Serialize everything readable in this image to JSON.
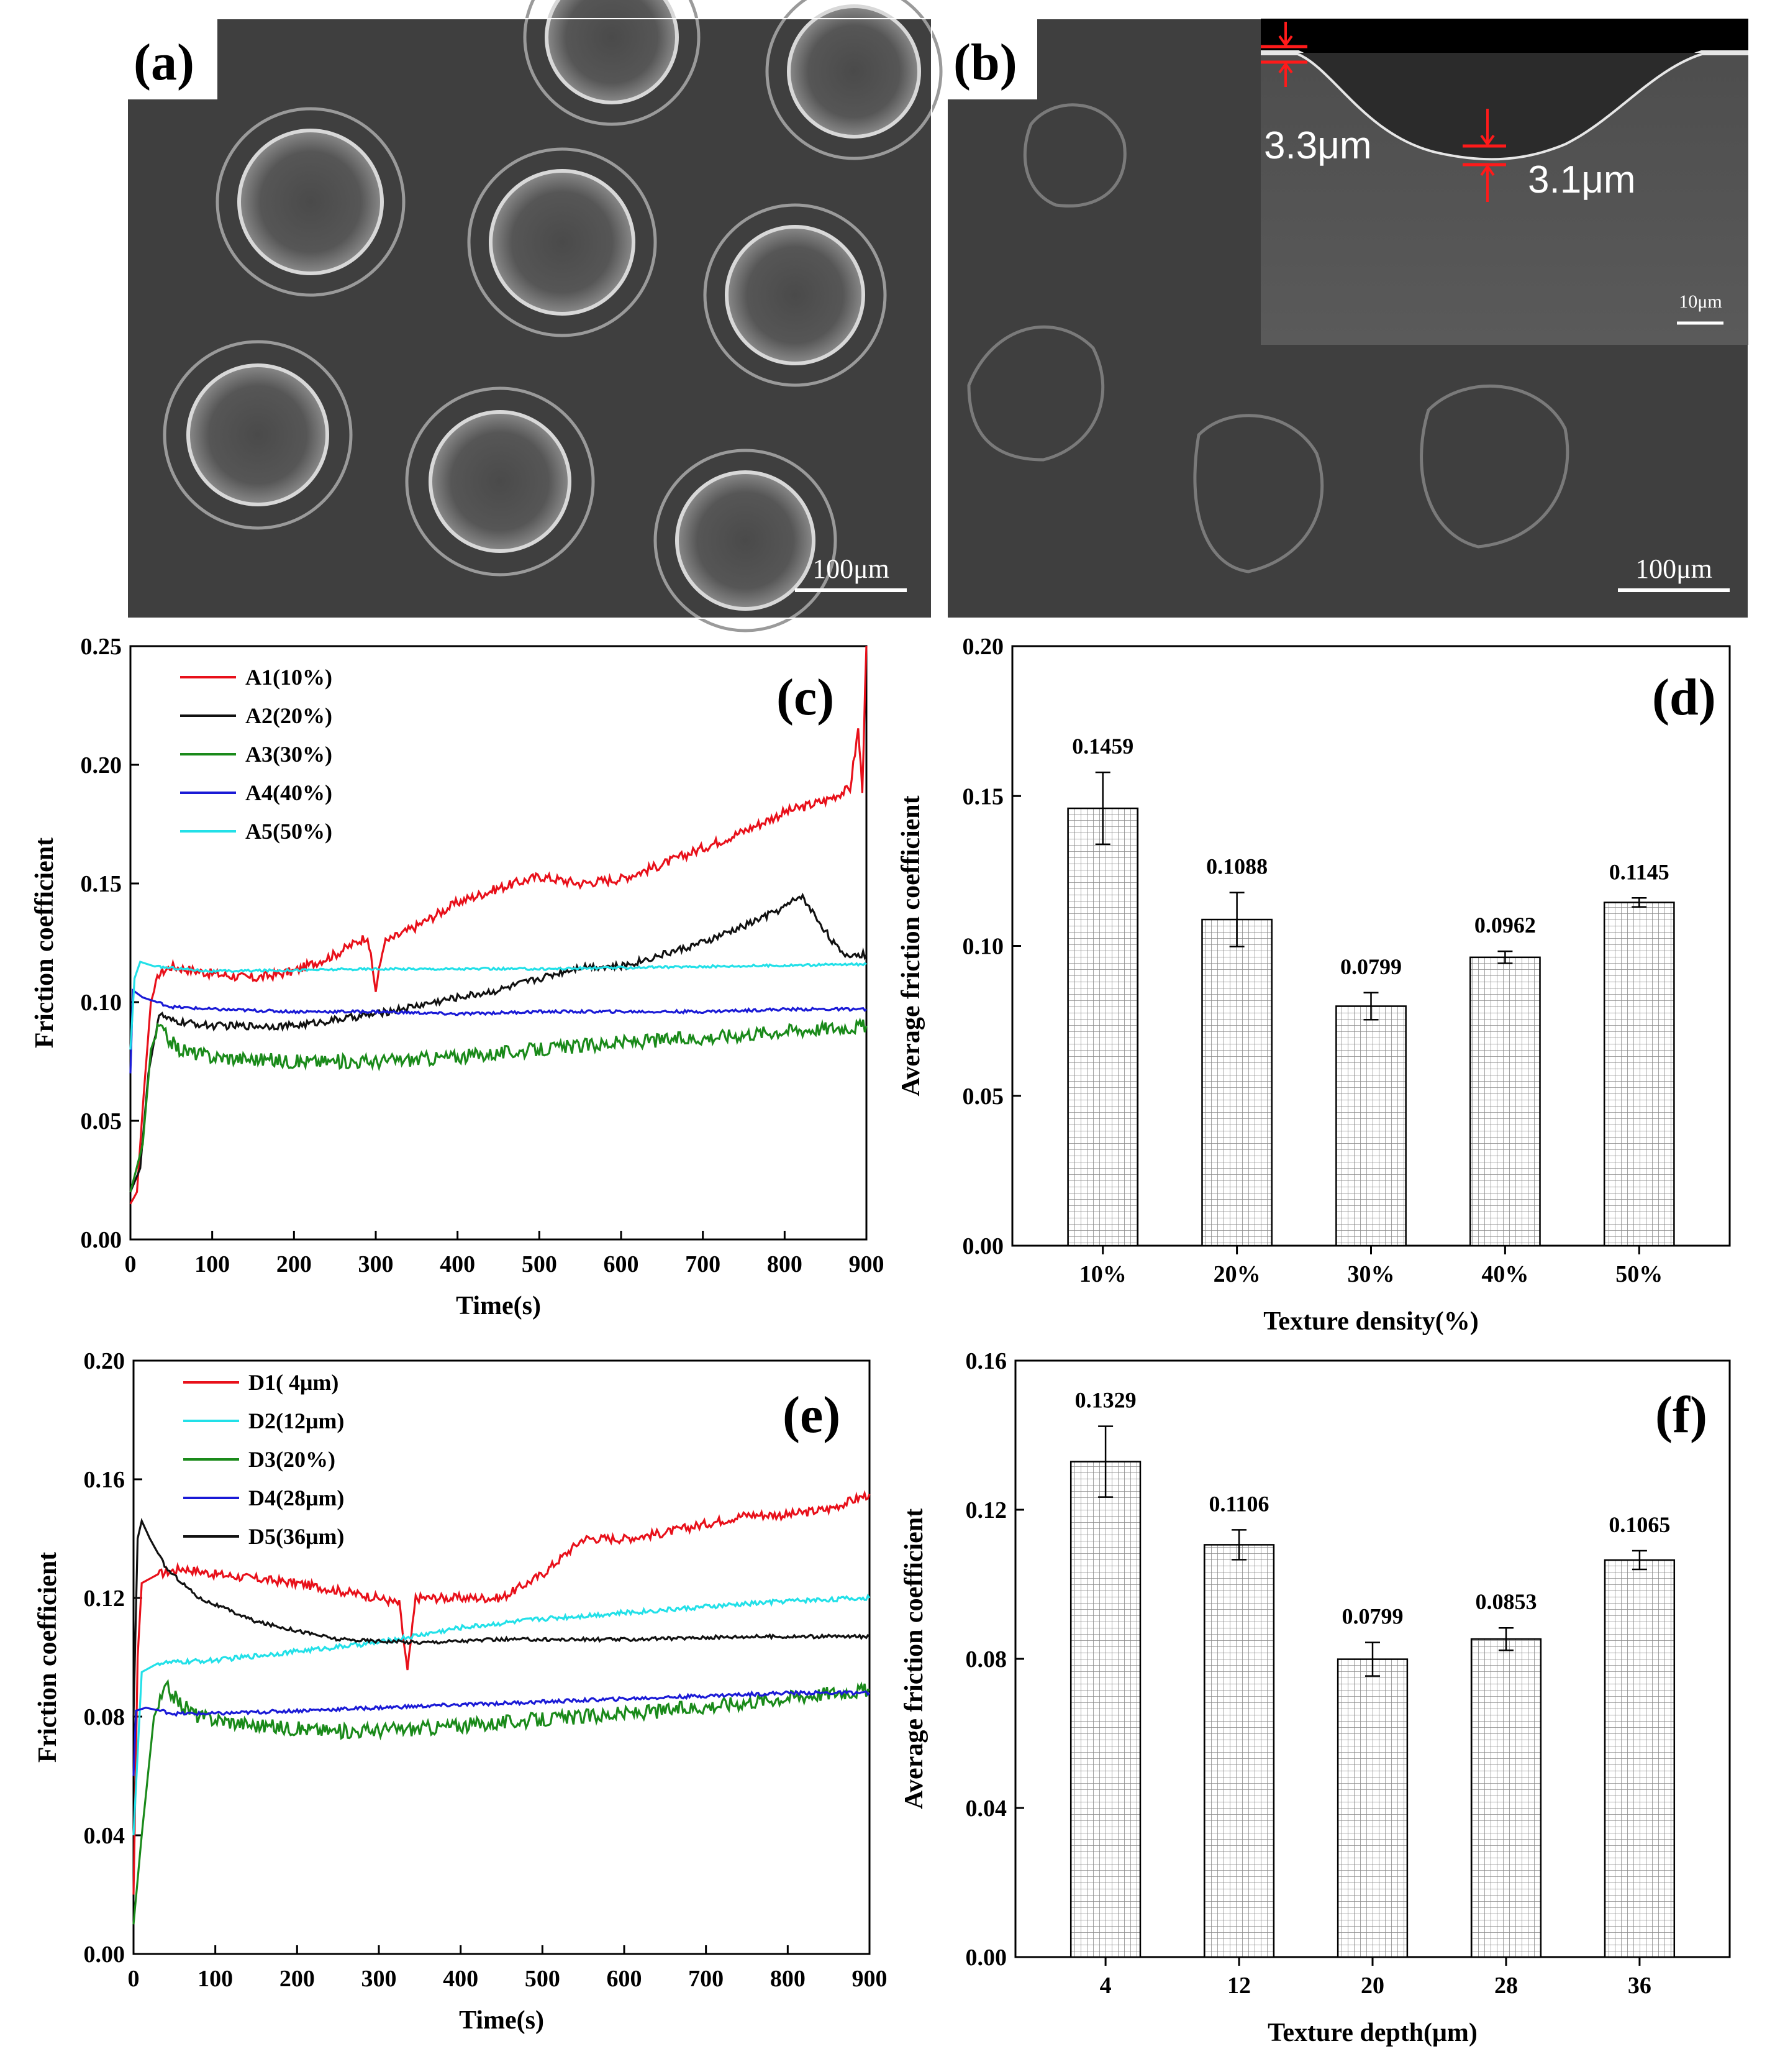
{
  "sem": {
    "a": {
      "label": "(a)",
      "scale": "100μm"
    },
    "b": {
      "label": "(b)",
      "scale": "100μm",
      "inset_scale": "10μm",
      "dim1": "3.3μm",
      "dim2": "3.1μm"
    }
  },
  "chart_data": [
    {
      "panel": "(c)",
      "type": "line",
      "xlabel": "Time(s)",
      "ylabel": "Friction coefficient",
      "xlim": [
        0,
        900
      ],
      "ylim": [
        0,
        0.25
      ],
      "xticks": [
        0,
        100,
        200,
        300,
        400,
        500,
        600,
        700,
        800,
        900
      ],
      "yticks": [
        0.0,
        0.05,
        0.1,
        0.15,
        0.2,
        0.25
      ],
      "ytick_labels": [
        "0.00",
        "0.05",
        "0.10",
        "0.15",
        "0.20",
        "0.25"
      ],
      "legend": "top-left",
      "series": [
        {
          "name": "A1(10%)",
          "color": "#e8101a",
          "noise": 0.002,
          "points": [
            [
              0,
              0.015
            ],
            [
              8,
              0.02
            ],
            [
              16,
              0.06
            ],
            [
              25,
              0.1
            ],
            [
              35,
              0.112
            ],
            [
              50,
              0.115
            ],
            [
              100,
              0.112
            ],
            [
              150,
              0.11
            ],
            [
              200,
              0.113
            ],
            [
              250,
              0.12
            ],
            [
              290,
              0.128
            ],
            [
              300,
              0.105
            ],
            [
              310,
              0.125
            ],
            [
              350,
              0.132
            ],
            [
              400,
              0.142
            ],
            [
              450,
              0.148
            ],
            [
              500,
              0.153
            ],
            [
              550,
              0.15
            ],
            [
              600,
              0.152
            ],
            [
              650,
              0.158
            ],
            [
              700,
              0.165
            ],
            [
              750,
              0.172
            ],
            [
              800,
              0.18
            ],
            [
              850,
              0.185
            ],
            [
              880,
              0.19
            ],
            [
              890,
              0.215
            ],
            [
              895,
              0.19
            ],
            [
              900,
              0.25
            ]
          ]
        },
        {
          "name": "A2(20%)",
          "color": "#111111",
          "noise": 0.0015,
          "points": [
            [
              0,
              0.02
            ],
            [
              12,
              0.03
            ],
            [
              22,
              0.07
            ],
            [
              35,
              0.095
            ],
            [
              50,
              0.092
            ],
            [
              100,
              0.09
            ],
            [
              200,
              0.09
            ],
            [
              300,
              0.095
            ],
            [
              400,
              0.102
            ],
            [
              450,
              0.105
            ],
            [
              500,
              0.11
            ],
            [
              550,
              0.115
            ],
            [
              600,
              0.115
            ],
            [
              650,
              0.12
            ],
            [
              700,
              0.125
            ],
            [
              750,
              0.132
            ],
            [
              800,
              0.14
            ],
            [
              820,
              0.145
            ],
            [
              850,
              0.13
            ],
            [
              870,
              0.12
            ],
            [
              900,
              0.12
            ]
          ]
        },
        {
          "name": "A3(30%)",
          "color": "#1a8a1a",
          "noise": 0.003,
          "points": [
            [
              0,
              0.02
            ],
            [
              15,
              0.04
            ],
            [
              25,
              0.08
            ],
            [
              35,
              0.09
            ],
            [
              45,
              0.085
            ],
            [
              60,
              0.08
            ],
            [
              100,
              0.077
            ],
            [
              200,
              0.075
            ],
            [
              300,
              0.075
            ],
            [
              400,
              0.077
            ],
            [
              500,
              0.08
            ],
            [
              600,
              0.083
            ],
            [
              700,
              0.085
            ],
            [
              800,
              0.088
            ],
            [
              900,
              0.09
            ]
          ]
        },
        {
          "name": "A4(40%)",
          "color": "#1a1ad6",
          "noise": 0.0006,
          "points": [
            [
              0,
              0.07
            ],
            [
              3,
              0.105
            ],
            [
              15,
              0.102
            ],
            [
              50,
              0.098
            ],
            [
              100,
              0.097
            ],
            [
              200,
              0.096
            ],
            [
              300,
              0.096
            ],
            [
              400,
              0.095
            ],
            [
              500,
              0.096
            ],
            [
              600,
              0.096
            ],
            [
              700,
              0.096
            ],
            [
              800,
              0.097
            ],
            [
              900,
              0.097
            ]
          ]
        },
        {
          "name": "A5(50%)",
          "color": "#22e0e8",
          "noise": 0.0005,
          "points": [
            [
              0,
              0.08
            ],
            [
              5,
              0.11
            ],
            [
              12,
              0.117
            ],
            [
              30,
              0.115
            ],
            [
              100,
              0.113
            ],
            [
              300,
              0.114
            ],
            [
              500,
              0.114
            ],
            [
              700,
              0.115
            ],
            [
              900,
              0.116
            ]
          ]
        }
      ]
    },
    {
      "panel": "(d)",
      "type": "bar",
      "xlabel": "Texture density(%)",
      "ylabel": "Average friction coefficient",
      "categories": [
        "10%",
        "20%",
        "30%",
        "40%",
        "50%"
      ],
      "values": [
        0.1459,
        0.1088,
        0.0799,
        0.0962,
        0.1145
      ],
      "value_labels": [
        "0.1459",
        "0.1088",
        "0.0799",
        "0.0962",
        "0.1145"
      ],
      "errors": [
        0.012,
        0.009,
        0.0045,
        0.002,
        0.0015
      ],
      "ylim": [
        0,
        0.2
      ],
      "yticks": [
        0.0,
        0.05,
        0.1,
        0.15,
        0.2
      ],
      "ytick_labels": [
        "0.00",
        "0.05",
        "0.10",
        "0.15",
        "0.20"
      ]
    },
    {
      "panel": "(e)",
      "type": "line",
      "xlabel": "Time(s)",
      "ylabel": "Friction coefficient",
      "xlim": [
        0,
        900
      ],
      "ylim": [
        0,
        0.2
      ],
      "xticks": [
        0,
        100,
        200,
        300,
        400,
        500,
        600,
        700,
        800,
        900
      ],
      "yticks": [
        0.0,
        0.04,
        0.08,
        0.12,
        0.16,
        0.2
      ],
      "ytick_labels": [
        "0.00",
        "0.04",
        "0.08",
        "0.12",
        "0.16",
        "0.20"
      ],
      "legend": "top-left",
      "series": [
        {
          "name": "D1(  4μm)",
          "color": "#e8101a",
          "noise": 0.0015,
          "points": [
            [
              0,
              0.02
            ],
            [
              5,
              0.1
            ],
            [
              10,
              0.125
            ],
            [
              30,
              0.128
            ],
            [
              60,
              0.13
            ],
            [
              100,
              0.128
            ],
            [
              200,
              0.125
            ],
            [
              300,
              0.12
            ],
            [
              325,
              0.118
            ],
            [
              335,
              0.095
            ],
            [
              345,
              0.12
            ],
            [
              400,
              0.12
            ],
            [
              450,
              0.12
            ],
            [
              500,
              0.128
            ],
            [
              550,
              0.14
            ],
            [
              600,
              0.14
            ],
            [
              650,
              0.142
            ],
            [
              700,
              0.145
            ],
            [
              750,
              0.148
            ],
            [
              800,
              0.148
            ],
            [
              850,
              0.15
            ],
            [
              900,
              0.155
            ]
          ]
        },
        {
          "name": "D2(12μm)",
          "color": "#22e0e8",
          "noise": 0.0008,
          "points": [
            [
              0,
              0.04
            ],
            [
              10,
              0.095
            ],
            [
              30,
              0.098
            ],
            [
              100,
              0.099
            ],
            [
              200,
              0.102
            ],
            [
              300,
              0.105
            ],
            [
              400,
              0.11
            ],
            [
              500,
              0.113
            ],
            [
              600,
              0.115
            ],
            [
              700,
              0.117
            ],
            [
              800,
              0.119
            ],
            [
              900,
              0.12
            ]
          ]
        },
        {
          "name": "D3(20%)",
          "color": "#1a8a1a",
          "noise": 0.0025,
          "points": [
            [
              0,
              0.01
            ],
            [
              10,
              0.04
            ],
            [
              25,
              0.08
            ],
            [
              40,
              0.09
            ],
            [
              55,
              0.085
            ],
            [
              80,
              0.08
            ],
            [
              150,
              0.077
            ],
            [
              250,
              0.075
            ],
            [
              350,
              0.076
            ],
            [
              450,
              0.078
            ],
            [
              550,
              0.08
            ],
            [
              650,
              0.082
            ],
            [
              750,
              0.085
            ],
            [
              850,
              0.088
            ],
            [
              900,
              0.089
            ]
          ]
        },
        {
          "name": "D4(28μm)",
          "color": "#1a1ad6",
          "noise": 0.0006,
          "points": [
            [
              0,
              0.06
            ],
            [
              3,
              0.082
            ],
            [
              15,
              0.083
            ],
            [
              50,
              0.081
            ],
            [
              100,
              0.081
            ],
            [
              200,
              0.082
            ],
            [
              300,
              0.083
            ],
            [
              400,
              0.084
            ],
            [
              500,
              0.085
            ],
            [
              600,
              0.086
            ],
            [
              700,
              0.087
            ],
            [
              800,
              0.088
            ],
            [
              900,
              0.088
            ]
          ]
        },
        {
          "name": "D5(36μm)",
          "color": "#111111",
          "noise": 0.0006,
          "points": [
            [
              0,
              0.08
            ],
            [
              5,
              0.14
            ],
            [
              10,
              0.146
            ],
            [
              20,
              0.14
            ],
            [
              40,
              0.13
            ],
            [
              80,
              0.12
            ],
            [
              150,
              0.112
            ],
            [
              250,
              0.106
            ],
            [
              350,
              0.105
            ],
            [
              450,
              0.106
            ],
            [
              600,
              0.106
            ],
            [
              750,
              0.107
            ],
            [
              900,
              0.107
            ]
          ]
        }
      ]
    },
    {
      "panel": "(f)",
      "type": "bar",
      "xlabel": "Texture depth(μm)",
      "ylabel": "Average friction coefficient",
      "categories": [
        "4",
        "12",
        "20",
        "28",
        "36"
      ],
      "values": [
        0.1329,
        0.1106,
        0.0799,
        0.0853,
        0.1065
      ],
      "value_labels": [
        "0.1329",
        "0.1106",
        "0.0799",
        "0.0853",
        "0.1065"
      ],
      "errors": [
        0.0095,
        0.004,
        0.0045,
        0.003,
        0.0025
      ],
      "ylim": [
        0,
        0.16
      ],
      "yticks": [
        0.0,
        0.04,
        0.08,
        0.12,
        0.16
      ],
      "ytick_labels": [
        "0.00",
        "0.04",
        "0.08",
        "0.12",
        "0.16"
      ]
    }
  ]
}
